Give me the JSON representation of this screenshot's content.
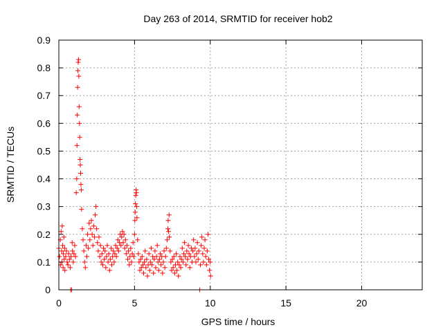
{
  "chart_data": {
    "type": "scatter",
    "title": "Day 263 of 2014, SRMTID for receiver hob2",
    "xlabel": "GPS time / hours",
    "ylabel": "SRMTID / TECUs",
    "xlim": [
      0,
      24
    ],
    "ylim": [
      0,
      0.9
    ],
    "xticks": [
      0,
      5,
      10,
      15,
      20
    ],
    "xtick_labels": [
      "0",
      "5",
      "10",
      "15",
      "20"
    ],
    "yticks": [
      0,
      0.1,
      0.2,
      0.3,
      0.4,
      0.5,
      0.6,
      0.7,
      0.8,
      0.9
    ],
    "ytick_labels": [
      "0",
      "0.1",
      "0.2",
      "0.3",
      "0.4",
      "0.5",
      "0.6",
      "0.7",
      "0.8",
      "0.9"
    ],
    "grid": true,
    "marker": "+",
    "series": [
      {
        "name": "SRMTID",
        "color": "#ff0000",
        "points": [
          [
            0.0,
            0.15
          ],
          [
            0.05,
            0.12
          ],
          [
            0.1,
            0.18
          ],
          [
            0.12,
            0.09
          ],
          [
            0.15,
            0.21
          ],
          [
            0.18,
            0.14
          ],
          [
            0.2,
            0.1
          ],
          [
            0.22,
            0.23
          ],
          [
            0.25,
            0.16
          ],
          [
            0.28,
            0.08
          ],
          [
            0.3,
            0.13
          ],
          [
            0.33,
            0.19
          ],
          [
            0.35,
            0.11
          ],
          [
            0.38,
            0.15
          ],
          [
            0.4,
            0.07
          ],
          [
            0.45,
            0.12
          ],
          [
            0.5,
            0.14
          ],
          [
            0.55,
            0.1
          ],
          [
            0.6,
            0.09
          ],
          [
            0.65,
            0.13
          ],
          [
            0.7,
            0.11
          ],
          [
            0.75,
            0.08
          ],
          [
            0.78,
            0.0
          ],
          [
            0.8,
            0.12
          ],
          [
            0.85,
            0.0
          ],
          [
            0.88,
            0.17
          ],
          [
            0.9,
            0.14
          ],
          [
            0.95,
            0.1
          ],
          [
            1.0,
            0.13
          ],
          [
            1.05,
            0.16
          ],
          [
            1.1,
            0.12
          ],
          [
            1.15,
            0.35
          ],
          [
            1.18,
            0.4
          ],
          [
            1.2,
            0.52
          ],
          [
            1.22,
            0.63
          ],
          [
            1.24,
            0.73
          ],
          [
            1.26,
            0.79
          ],
          [
            1.28,
            0.82
          ],
          [
            1.3,
            0.83
          ],
          [
            1.32,
            0.77
          ],
          [
            1.34,
            0.66
          ],
          [
            1.36,
            0.6
          ],
          [
            1.38,
            0.55
          ],
          [
            1.4,
            0.47
          ],
          [
            1.42,
            0.45
          ],
          [
            1.44,
            0.42
          ],
          [
            1.46,
            0.38
          ],
          [
            1.48,
            0.36
          ],
          [
            1.5,
            0.29
          ],
          [
            1.55,
            0.22
          ],
          [
            1.6,
            0.18
          ],
          [
            1.65,
            0.14
          ],
          [
            1.7,
            0.1
          ],
          [
            1.75,
            0.08
          ],
          [
            1.8,
            0.16
          ],
          [
            1.85,
            0.12
          ],
          [
            1.9,
            0.2
          ],
          [
            1.95,
            0.15
          ],
          [
            2.0,
            0.24
          ],
          [
            2.05,
            0.18
          ],
          [
            2.1,
            0.22
          ],
          [
            2.15,
            0.25
          ],
          [
            2.2,
            0.2
          ],
          [
            2.25,
            0.16
          ],
          [
            2.3,
            0.23
          ],
          [
            2.35,
            0.19
          ],
          [
            2.4,
            0.27
          ],
          [
            2.45,
            0.3
          ],
          [
            2.5,
            0.22
          ],
          [
            2.55,
            0.17
          ],
          [
            2.6,
            0.14
          ],
          [
            2.65,
            0.19
          ],
          [
            2.7,
            0.12
          ],
          [
            2.75,
            0.16
          ],
          [
            2.8,
            0.1
          ],
          [
            2.85,
            0.13
          ],
          [
            2.9,
            0.09
          ],
          [
            2.95,
            0.15
          ],
          [
            3.0,
            0.11
          ],
          [
            3.05,
            0.14
          ],
          [
            3.1,
            0.08
          ],
          [
            3.15,
            0.12
          ],
          [
            3.2,
            0.16
          ],
          [
            3.25,
            0.1
          ],
          [
            3.3,
            0.13
          ],
          [
            3.35,
            0.07
          ],
          [
            3.4,
            0.11
          ],
          [
            3.45,
            0.15
          ],
          [
            3.5,
            0.09
          ],
          [
            3.55,
            0.12
          ],
          [
            3.6,
            0.14
          ],
          [
            3.65,
            0.1
          ],
          [
            3.7,
            0.13
          ],
          [
            3.75,
            0.16
          ],
          [
            3.8,
            0.12
          ],
          [
            3.85,
            0.15
          ],
          [
            3.9,
            0.18
          ],
          [
            3.95,
            0.14
          ],
          [
            4.0,
            0.17
          ],
          [
            4.05,
            0.2
          ],
          [
            4.1,
            0.16
          ],
          [
            4.15,
            0.19
          ],
          [
            4.2,
            0.21
          ],
          [
            4.25,
            0.17
          ],
          [
            4.3,
            0.2
          ],
          [
            4.35,
            0.15
          ],
          [
            4.4,
            0.18
          ],
          [
            4.45,
            0.13
          ],
          [
            4.5,
            0.16
          ],
          [
            4.55,
            0.11
          ],
          [
            4.6,
            0.14
          ],
          [
            4.65,
            0.09
          ],
          [
            4.7,
            0.12
          ],
          [
            4.75,
            0.15
          ],
          [
            4.8,
            0.1
          ],
          [
            4.85,
            0.13
          ],
          [
            4.9,
            0.17
          ],
          [
            4.95,
            0.12
          ],
          [
            5.0,
            0.2
          ],
          [
            5.02,
            0.25
          ],
          [
            5.04,
            0.28
          ],
          [
            5.06,
            0.31
          ],
          [
            5.08,
            0.34
          ],
          [
            5.1,
            0.36
          ],
          [
            5.12,
            0.35
          ],
          [
            5.14,
            0.3
          ],
          [
            5.16,
            0.26
          ],
          [
            5.2,
            0.18
          ],
          [
            5.25,
            0.13
          ],
          [
            5.3,
            0.1
          ],
          [
            5.35,
            0.07
          ],
          [
            5.4,
            0.11
          ],
          [
            5.45,
            0.08
          ],
          [
            5.5,
            0.12
          ],
          [
            5.55,
            0.09
          ],
          [
            5.6,
            0.06
          ],
          [
            5.65,
            0.1
          ],
          [
            5.7,
            0.14
          ],
          [
            5.75,
            0.08
          ],
          [
            5.8,
            0.11
          ],
          [
            5.85,
            0.05
          ],
          [
            5.9,
            0.09
          ],
          [
            5.95,
            0.13
          ],
          [
            6.0,
            0.07
          ],
          [
            6.05,
            0.1
          ],
          [
            6.1,
            0.15
          ],
          [
            6.15,
            0.09
          ],
          [
            6.2,
            0.12
          ],
          [
            6.25,
            0.06
          ],
          [
            6.3,
            0.11
          ],
          [
            6.35,
            0.14
          ],
          [
            6.4,
            0.08
          ],
          [
            6.45,
            0.12
          ],
          [
            6.5,
            0.16
          ],
          [
            6.55,
            0.1
          ],
          [
            6.6,
            0.07
          ],
          [
            6.65,
            0.11
          ],
          [
            6.7,
            0.13
          ],
          [
            6.75,
            0.09
          ],
          [
            6.8,
            0.12
          ],
          [
            6.85,
            0.06
          ],
          [
            6.9,
            0.1
          ],
          [
            6.95,
            0.14
          ],
          [
            7.0,
            0.08
          ],
          [
            7.05,
            0.12
          ],
          [
            7.1,
            0.15
          ],
          [
            7.15,
            0.18
          ],
          [
            7.2,
            0.22
          ],
          [
            7.22,
            0.25
          ],
          [
            7.25,
            0.21
          ],
          [
            7.28,
            0.27
          ],
          [
            7.3,
            0.19
          ],
          [
            7.35,
            0.14
          ],
          [
            7.4,
            0.1
          ],
          [
            7.45,
            0.07
          ],
          [
            7.5,
            0.11
          ],
          [
            7.55,
            0.08
          ],
          [
            7.6,
            0.12
          ],
          [
            7.65,
            0.06
          ],
          [
            7.7,
            0.09
          ],
          [
            7.75,
            0.13
          ],
          [
            7.8,
            0.07
          ],
          [
            7.85,
            0.1
          ],
          [
            7.9,
            0.05
          ],
          [
            7.95,
            0.09
          ],
          [
            8.0,
            0.12
          ],
          [
            8.05,
            0.08
          ],
          [
            8.1,
            0.11
          ],
          [
            8.15,
            0.15
          ],
          [
            8.2,
            0.1
          ],
          [
            8.25,
            0.13
          ],
          [
            8.3,
            0.17
          ],
          [
            8.35,
            0.12
          ],
          [
            8.4,
            0.09
          ],
          [
            8.45,
            0.14
          ],
          [
            8.5,
            0.11
          ],
          [
            8.55,
            0.16
          ],
          [
            8.6,
            0.13
          ],
          [
            8.65,
            0.08
          ],
          [
            8.7,
            0.12
          ],
          [
            8.75,
            0.15
          ],
          [
            8.8,
            0.1
          ],
          [
            8.85,
            0.14
          ],
          [
            8.9,
            0.18
          ],
          [
            8.95,
            0.12
          ],
          [
            9.0,
            0.15
          ],
          [
            9.05,
            0.1
          ],
          [
            9.1,
            0.13
          ],
          [
            9.15,
            0.17
          ],
          [
            9.2,
            0.11
          ],
          [
            9.25,
            0.14
          ],
          [
            9.3,
            0.0
          ],
          [
            9.35,
            0.09
          ],
          [
            9.4,
            0.16
          ],
          [
            9.45,
            0.19
          ],
          [
            9.5,
            0.13
          ],
          [
            9.55,
            0.1
          ],
          [
            9.6,
            0.15
          ],
          [
            9.65,
            0.18
          ],
          [
            9.7,
            0.12
          ],
          [
            9.75,
            0.09
          ],
          [
            9.8,
            0.14
          ],
          [
            9.85,
            0.2
          ],
          [
            9.9,
            0.11
          ],
          [
            9.95,
            0.07
          ],
          [
            10.0,
            0.1
          ],
          [
            10.02,
            0.05
          ]
        ]
      }
    ]
  }
}
